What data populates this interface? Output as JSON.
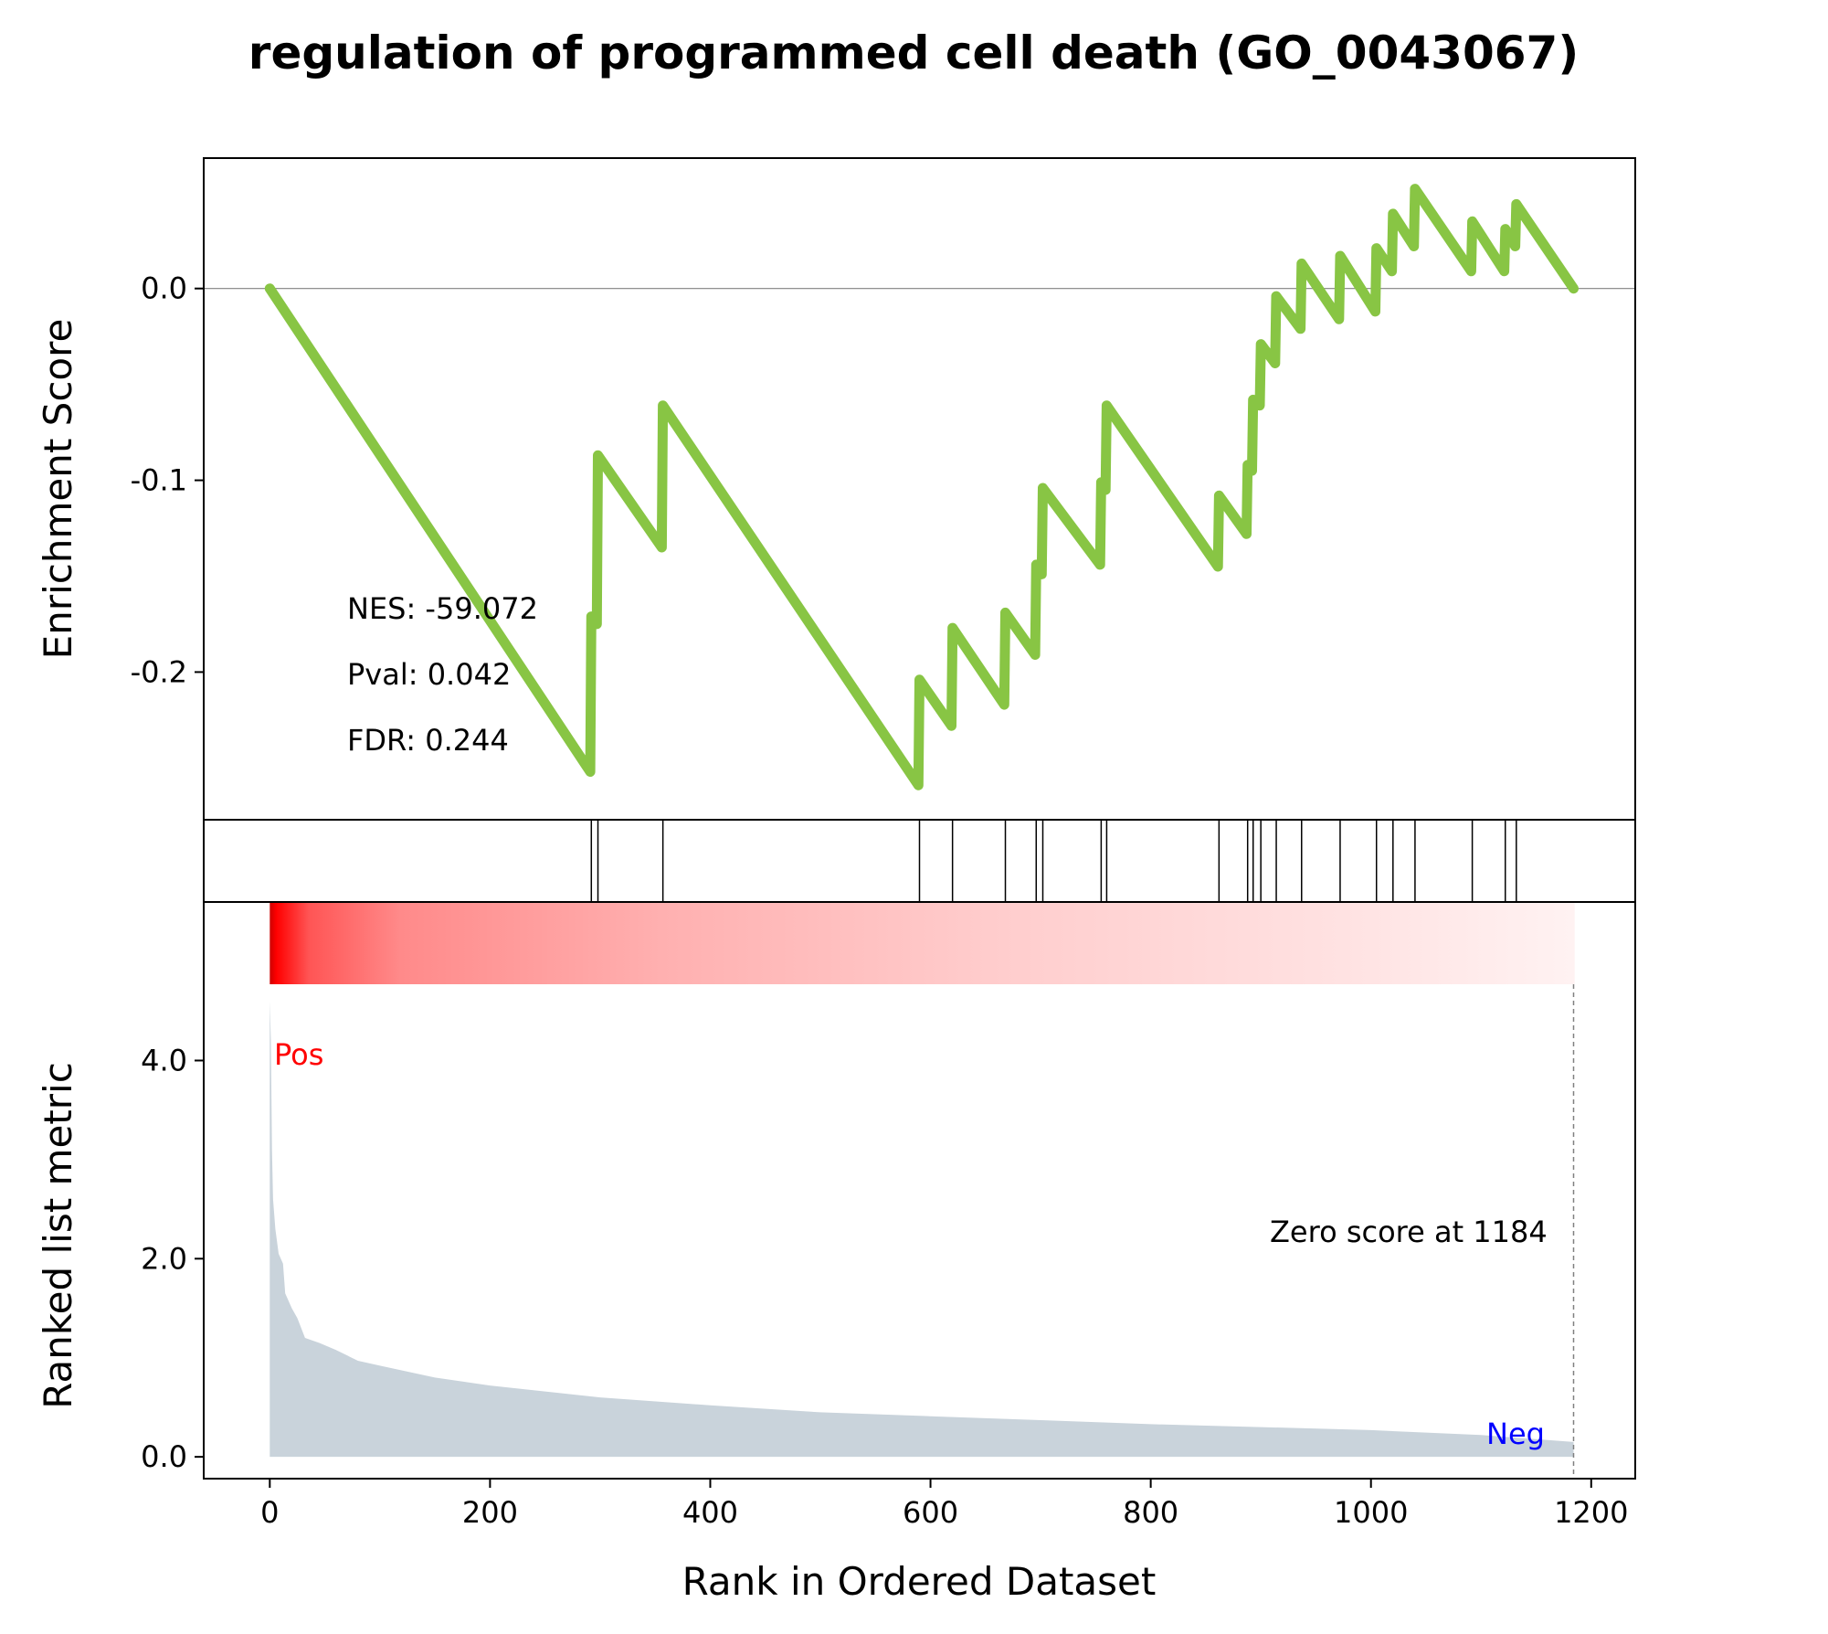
{
  "chart_data": {
    "type": "line",
    "title": "regulation of programmed cell death (GO_0043067)",
    "xlabel": "Rank in Ordered Dataset",
    "ylabel_top": "Enrichment Score",
    "ylabel_bottom": "Ranked list metric",
    "xlim": [
      -60,
      1240
    ],
    "x_ticks": [
      0,
      200,
      400,
      600,
      800,
      1000,
      1200
    ],
    "x_tick_labels": [
      "0",
      "200",
      "400",
      "600",
      "800",
      "1000",
      "1200"
    ],
    "es_ylim": [
      -0.277,
      0.068
    ],
    "es_ticks": [
      0.0,
      -0.1,
      -0.2
    ],
    "es_tick_labels": [
      "0.0",
      "-0.1",
      "-0.2"
    ],
    "metric_ylim": [
      -0.22,
      5.6
    ],
    "metric_ticks": [
      0.0,
      2.0,
      4.0
    ],
    "metric_tick_labels": [
      "0.0",
      "2.0",
      "4.0"
    ],
    "stats": {
      "nes": "NES: -59.072",
      "pval": "Pval: 0.042",
      "fdr": "FDR: 0.244"
    },
    "labels": {
      "pos": "Pos",
      "neg": "Neg",
      "zero_score": "Zero score at 1184"
    },
    "zero_score_rank": 1184,
    "n_genes": 1185,
    "hit_ranks": [
      292,
      298,
      357,
      590,
      620,
      668,
      696,
      702,
      755,
      760,
      862,
      888,
      893,
      900,
      914,
      937,
      972,
      1005,
      1020,
      1040,
      1092,
      1122,
      1132
    ],
    "es_curve": [
      {
        "x": 0,
        "y": 0.0
      },
      {
        "x": 291,
        "y": -0.252
      },
      {
        "x": 292,
        "y": -0.171
      },
      {
        "x": 297,
        "y": -0.175
      },
      {
        "x": 298,
        "y": -0.087
      },
      {
        "x": 356,
        "y": -0.135
      },
      {
        "x": 357,
        "y": -0.061
      },
      {
        "x": 589,
        "y": -0.259
      },
      {
        "x": 590,
        "y": -0.204
      },
      {
        "x": 619,
        "y": -0.228
      },
      {
        "x": 620,
        "y": -0.177
      },
      {
        "x": 667,
        "y": -0.217
      },
      {
        "x": 668,
        "y": -0.169
      },
      {
        "x": 695,
        "y": -0.191
      },
      {
        "x": 696,
        "y": -0.144
      },
      {
        "x": 701,
        "y": -0.149
      },
      {
        "x": 702,
        "y": -0.104
      },
      {
        "x": 754,
        "y": -0.144
      },
      {
        "x": 755,
        "y": -0.101
      },
      {
        "x": 759,
        "y": -0.105
      },
      {
        "x": 760,
        "y": -0.061
      },
      {
        "x": 861,
        "y": -0.145
      },
      {
        "x": 862,
        "y": -0.108
      },
      {
        "x": 887,
        "y": -0.128
      },
      {
        "x": 888,
        "y": -0.092
      },
      {
        "x": 892,
        "y": -0.095
      },
      {
        "x": 893,
        "y": -0.058
      },
      {
        "x": 899,
        "y": -0.061
      },
      {
        "x": 900,
        "y": -0.029
      },
      {
        "x": 913,
        "y": -0.039
      },
      {
        "x": 914,
        "y": -0.004
      },
      {
        "x": 936,
        "y": -0.021
      },
      {
        "x": 937,
        "y": 0.013
      },
      {
        "x": 971,
        "y": -0.016
      },
      {
        "x": 972,
        "y": 0.017
      },
      {
        "x": 1004,
        "y": -0.012
      },
      {
        "x": 1005,
        "y": 0.021
      },
      {
        "x": 1019,
        "y": 0.009
      },
      {
        "x": 1020,
        "y": 0.039
      },
      {
        "x": 1039,
        "y": 0.022
      },
      {
        "x": 1040,
        "y": 0.052
      },
      {
        "x": 1091,
        "y": 0.009
      },
      {
        "x": 1092,
        "y": 0.035
      },
      {
        "x": 1121,
        "y": 0.009
      },
      {
        "x": 1122,
        "y": 0.031
      },
      {
        "x": 1131,
        "y": 0.022
      },
      {
        "x": 1132,
        "y": 0.044
      },
      {
        "x": 1184,
        "y": 0.0
      }
    ],
    "metric_curve": [
      {
        "x": 0,
        "y": 4.6
      },
      {
        "x": 1,
        "y": 4.2
      },
      {
        "x": 2,
        "y": 3.1
      },
      {
        "x": 3,
        "y": 2.6
      },
      {
        "x": 5,
        "y": 2.3
      },
      {
        "x": 8,
        "y": 2.05
      },
      {
        "x": 12,
        "y": 1.95
      },
      {
        "x": 14,
        "y": 1.65
      },
      {
        "x": 20,
        "y": 1.5
      },
      {
        "x": 25,
        "y": 1.4
      },
      {
        "x": 32,
        "y": 1.2
      },
      {
        "x": 45,
        "y": 1.15
      },
      {
        "x": 60,
        "y": 1.08
      },
      {
        "x": 80,
        "y": 0.97
      },
      {
        "x": 100,
        "y": 0.92
      },
      {
        "x": 150,
        "y": 0.8
      },
      {
        "x": 200,
        "y": 0.72
      },
      {
        "x": 250,
        "y": 0.66
      },
      {
        "x": 300,
        "y": 0.6
      },
      {
        "x": 400,
        "y": 0.52
      },
      {
        "x": 500,
        "y": 0.45
      },
      {
        "x": 600,
        "y": 0.41
      },
      {
        "x": 700,
        "y": 0.37
      },
      {
        "x": 800,
        "y": 0.33
      },
      {
        "x": 900,
        "y": 0.3
      },
      {
        "x": 1000,
        "y": 0.27
      },
      {
        "x": 1100,
        "y": 0.22
      },
      {
        "x": 1184,
        "y": 0.15
      }
    ],
    "colors": {
      "es_line": "#88C544",
      "metric_fill": "#C9D3DB",
      "heat_high": "#FF0000",
      "heat_low": "#FFFFFF",
      "pos_label": "#FF0000",
      "neg_label": "#0000FF",
      "zero_line": "#808080"
    }
  }
}
